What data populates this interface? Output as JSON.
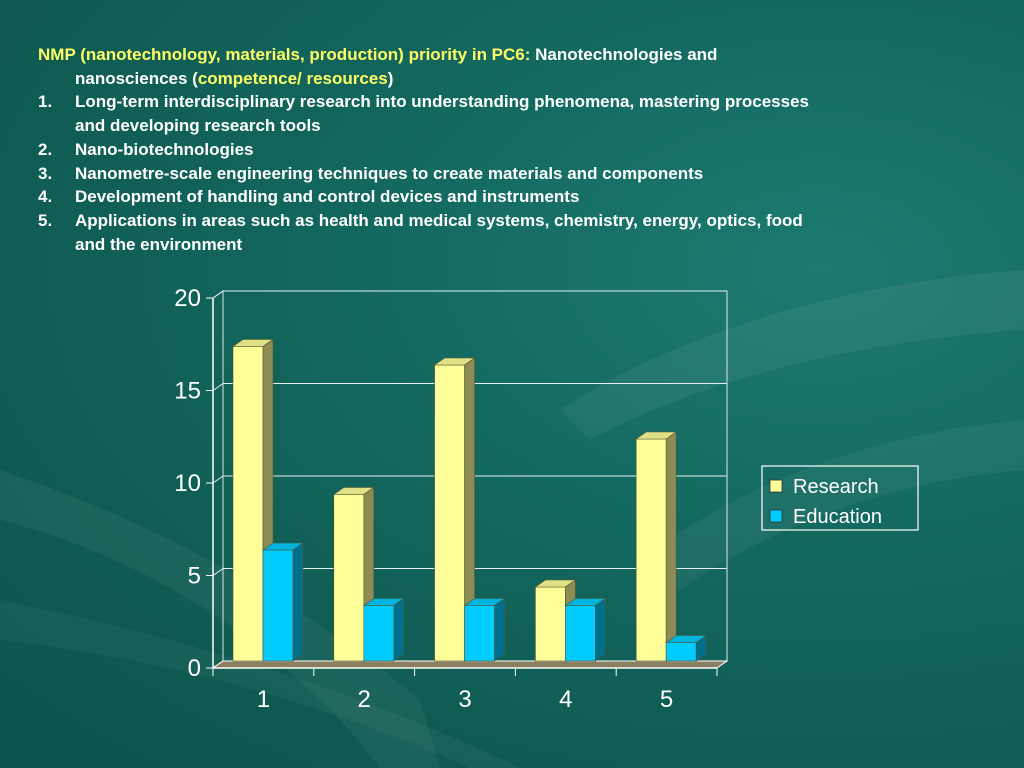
{
  "header": {
    "prefix_highlight": "NMP (nanotechnology, materials, production) priority in PC6:",
    "prefix_rest": " Nanotechnologies and",
    "line2_start": "nanosciences (",
    "line2_highlight": "competence/ resources",
    "line2_end": ")"
  },
  "items": [
    {
      "num": "1.",
      "text": "Long-term interdisciplinary research into understanding phenomena, mastering processes",
      "cont": "and developing research tools"
    },
    {
      "num": "2.",
      "text": "Nano-biotechnologies",
      "cont": ""
    },
    {
      "num": "3.",
      "text": "Nanometre-scale engineering techniques to create materials and components",
      "cont": ""
    },
    {
      "num": "4.",
      "text": "Development of handling and control devices and instruments",
      "cont": ""
    },
    {
      "num": "5.",
      "text": "Applications in areas such as health and medical systems, chemistry, energy, optics, food",
      "cont": "and the environment"
    }
  ],
  "colors": {
    "highlight": "#ffff66",
    "research": "#ffff99",
    "education": "#00ccff"
  },
  "chart_data": {
    "type": "bar",
    "categories": [
      "1",
      "2",
      "3",
      "4",
      "5"
    ],
    "series": [
      {
        "name": "Research",
        "values": [
          17,
          9,
          16,
          4,
          12
        ],
        "color": "#ffff99"
      },
      {
        "name": "Education",
        "values": [
          6,
          3,
          3,
          3,
          1
        ],
        "color": "#00ccff"
      }
    ],
    "yticks": [
      "0",
      "5",
      "10",
      "15",
      "20"
    ],
    "ylim": [
      0,
      20
    ],
    "grid": true,
    "legend_position": "right",
    "style": "3d-clustered-column"
  }
}
